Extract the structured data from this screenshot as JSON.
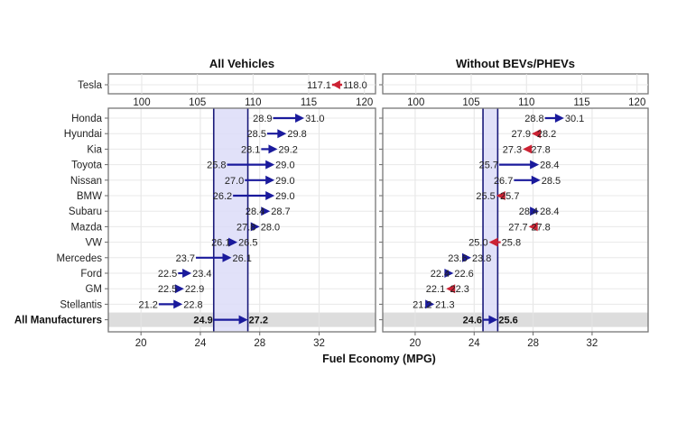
{
  "chart_data": {
    "type": "dumbbell-arrow",
    "xlabel": "Fuel Economy (MPG)",
    "colors": {
      "increase": "#1a1a9c",
      "decrease": "#cc2233",
      "band": "#dcdcf8",
      "band_edge": "#1a1a7a",
      "highlight_row": "#dddddd"
    },
    "panels": [
      {
        "title": "All Vehicles",
        "top_axis": {
          "ticks": [
            "100",
            "105",
            "110",
            "115",
            "120"
          ],
          "range": [
            97,
            121
          ]
        },
        "bottom_axis": {
          "ticks": [
            "20",
            "24",
            "28",
            "32"
          ],
          "range": [
            17.8,
            35.8
          ]
        },
        "tesla": {
          "category": "Tesla",
          "from": 118.0,
          "to": 117.1,
          "from_label": "118.0",
          "to_label": "117.1"
        },
        "categories": [
          "Honda",
          "Hyundai",
          "Kia",
          "Toyota",
          "Nissan",
          "BMW",
          "Subaru",
          "Mazda",
          "VW",
          "Mercedes",
          "Ford",
          "GM",
          "Stellantis",
          "All Manufacturers"
        ],
        "from": [
          28.9,
          28.5,
          28.1,
          25.8,
          27.0,
          26.2,
          28.4,
          27.8,
          26.1,
          23.7,
          22.5,
          22.5,
          21.2,
          24.9
        ],
        "to": [
          31.0,
          29.8,
          29.2,
          29.0,
          29.0,
          29.0,
          28.7,
          28.0,
          26.5,
          26.1,
          23.4,
          22.9,
          22.8,
          27.2
        ],
        "from_labels": [
          "28.9",
          "28.5",
          "28.1",
          "25.8",
          "27.0",
          "26.2",
          "28.4",
          "27.8",
          "26.1",
          "23.7",
          "22.5",
          "22.5",
          "21.2",
          "24.9"
        ],
        "to_labels": [
          "31.0",
          "29.8",
          "29.2",
          "29.0",
          "29.0",
          "29.0",
          "28.7",
          "28.0",
          "26.5",
          "26.1",
          "23.4",
          "22.9",
          "22.8",
          "27.2"
        ],
        "band": [
          24.9,
          27.2
        ]
      },
      {
        "title": "Without BEVs/PHEVs",
        "top_axis": {
          "ticks": [
            "100",
            "105",
            "110",
            "115",
            "120"
          ],
          "range": [
            97,
            121
          ]
        },
        "bottom_axis": {
          "ticks": [
            "20",
            "24",
            "28",
            "32"
          ],
          "range": [
            17.8,
            35.8
          ]
        },
        "tesla": null,
        "categories": [
          "Honda",
          "Hyundai",
          "Kia",
          "Toyota",
          "Nissan",
          "BMW",
          "Subaru",
          "Mazda",
          "VW",
          "Mercedes",
          "Ford",
          "GM",
          "Stellantis",
          "All Manufacturers"
        ],
        "from": [
          28.8,
          28.2,
          27.8,
          25.7,
          26.7,
          25.7,
          28.4,
          27.8,
          25.8,
          23.6,
          22.4,
          22.3,
          21.2,
          24.6
        ],
        "to": [
          30.1,
          27.9,
          27.3,
          28.4,
          28.5,
          25.5,
          28.4,
          27.7,
          25.0,
          23.8,
          22.6,
          22.1,
          21.3,
          25.6
        ],
        "from_labels": [
          "28.8",
          "28.2",
          "27.8",
          "25.7",
          "26.7",
          "25.7",
          "28.4",
          "27.8",
          "25.8",
          "23.6",
          "22.4",
          "22.3",
          "21.2",
          "24.6"
        ],
        "to_labels": [
          "30.1",
          "27.9",
          "27.3",
          "28.4",
          "28.5",
          "25.5",
          "28.4",
          "27.7",
          "25.0",
          "23.8",
          "22.6",
          "22.1",
          "21.3",
          "25.6"
        ],
        "band": [
          24.6,
          25.6
        ]
      }
    ]
  }
}
